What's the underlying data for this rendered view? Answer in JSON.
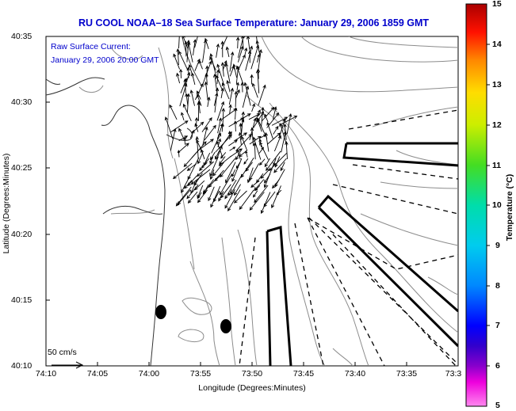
{
  "header": {
    "title": "RU COOL  NOAA–18  Sea Surface Temperature:  January 29, 2006 1859 GMT"
  },
  "current_legend": {
    "line1": "Raw Surface Current:",
    "line2": "January 29, 2006 20:00 GMT",
    "scale_label": "50 cm/s"
  },
  "axes": {
    "xlabel": "Longitude (Degrees:Minutes)",
    "ylabel": "Latitude (Degrees:Minutes)",
    "x_ticks": [
      "74:10",
      "74:05",
      "74:00",
      "73:55",
      "73:50",
      "73:45",
      "73:40",
      "73:35",
      "73:3"
    ],
    "y_ticks": [
      "40:35",
      "40:30",
      "40:25",
      "40:20",
      "40:15",
      "40:10"
    ]
  },
  "colorbar": {
    "label": "Temperature (°C)",
    "ticks": [
      "15",
      "14",
      "13",
      "12",
      "11",
      "10",
      "9",
      "8",
      "7",
      "6",
      "5"
    ],
    "min": 5,
    "max": 15
  },
  "colors": {
    "title": "#0000cc",
    "contour": "#888888",
    "coast": "#333333"
  },
  "icons": {
    "arrow": "current-vector-icon",
    "buoy": "station-marker-icon"
  }
}
